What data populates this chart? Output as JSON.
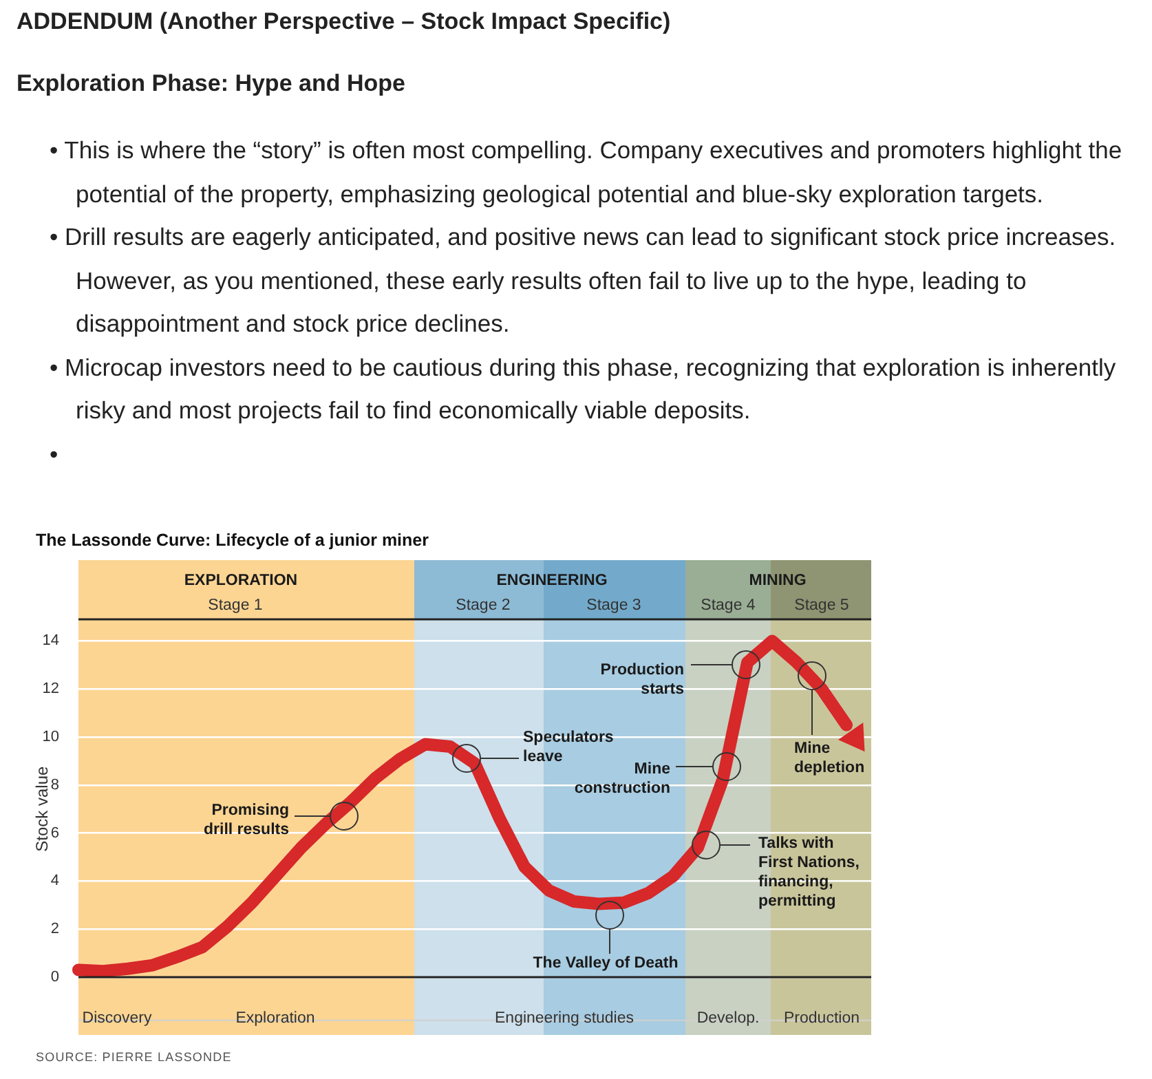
{
  "chart_data": {
    "type": "line",
    "title": "The Lassonde Curve: Lifecycle of a junior miner",
    "ylabel": "Stock value",
    "categories": [
      null,
      null,
      null,
      null,
      null,
      null,
      null,
      null,
      null,
      null,
      null,
      null,
      null,
      null,
      null,
      null,
      null,
      null,
      null,
      null,
      null,
      null,
      null,
      null,
      null,
      null,
      null,
      null,
      null,
      null,
      null,
      null,
      null
    ],
    "series": [
      {
        "color": "#d7282a",
        "values": [
          0.3,
          0.25,
          0.35,
          0.5,
          0.85,
          1.25,
          2.1,
          3.1,
          4.25,
          5.4,
          6.4,
          7.3,
          8.3,
          9.1,
          9.7,
          9.6,
          8.9,
          6.6,
          4.6,
          3.6,
          3.15,
          3.05,
          3.1,
          3.5,
          4.2,
          5.4,
          8.2,
          13.1,
          14.0,
          13.1,
          12.0,
          10.5,
          null
        ]
      }
    ],
    "ylim": [
      -1.8,
      14.9
    ],
    "yticks": [
      0,
      2,
      4,
      6,
      8,
      10,
      12,
      14
    ],
    "tick_labels": "y",
    "grid": "y",
    "marker": "none",
    "line_style": "solid",
    "annotations": [
      "ADDENDUM (Another Perspective – Stock Impact Specific)",
      "Exploration Phase: Hype and Hope",
      "• This is where the “story” is often most compelling. Company executives and promoters highlight the potential of the property, emphasizing geological potential and blue-sky exploration targets.",
      "• Drill results are eagerly anticipated, and positive news can lead to significant stock price increases. However, as you mentioned, these early results often fail to live up to the hype, leading to disappointment and stock price declines.",
      "• Microcap investors need to be cautious during this phase, recognizing that exploration is inherently risky and most projects fail to find economically viable deposits.",
      "•",
      "EXPLORATION",
      "ENGINEERING",
      "MINING",
      "Stage 1",
      "Stage 2",
      "Stage 3",
      "Stage 4",
      "Stage 5",
      "Promising\ndrill results",
      "Speculators\nleave",
      "The Valley of Death",
      "Talks with\nFirst Nations,\nfinancing,\npermitting",
      "Mine\nconstruction",
      "Production\nstarts",
      "Mine\ndepletion",
      "Discovery",
      "Exploration",
      "Engineering studies",
      "Develop.",
      "Production",
      "SOURCE: PIERRE LASSONDE"
    ]
  }
}
